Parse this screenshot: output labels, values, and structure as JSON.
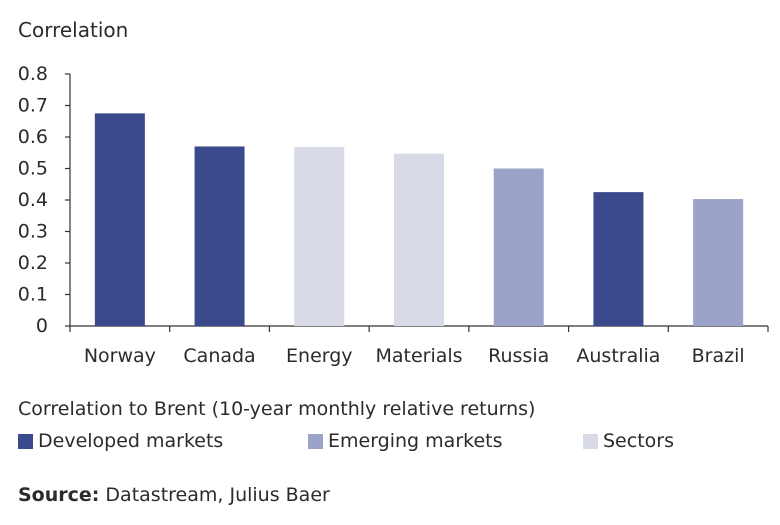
{
  "chart_data": {
    "type": "bar",
    "ylabel": "Correlation",
    "xlabel": "",
    "ylim": [
      0,
      0.8
    ],
    "yticks": [
      "0",
      "0.1",
      "0.2",
      "0.3",
      "0.4",
      "0.5",
      "0.6",
      "0.7",
      "0.8"
    ],
    "grid": false,
    "categories": [
      "Norway",
      "Canada",
      "Energy",
      "Materials",
      "Russia",
      "Australia",
      "Brazil"
    ],
    "values": [
      0.675,
      0.57,
      0.568,
      0.547,
      0.5,
      0.425,
      0.403
    ],
    "groups": [
      "Developed markets",
      "Developed markets",
      "Sectors",
      "Sectors",
      "Emerging markets",
      "Developed markets",
      "Emerging markets"
    ],
    "legend_placement": "bottom"
  },
  "caption": "Correlation to Brent (10-year monthly relative returns)",
  "legend": [
    {
      "label": "Developed markets",
      "color": "#3b4a8c"
    },
    {
      "label": "Emerging markets",
      "color": "#9ba3c8"
    },
    {
      "label": "Sectors",
      "color": "#d8dae7"
    }
  ],
  "source": {
    "label": "Source:",
    "text": " Datastream, Julius Baer"
  }
}
